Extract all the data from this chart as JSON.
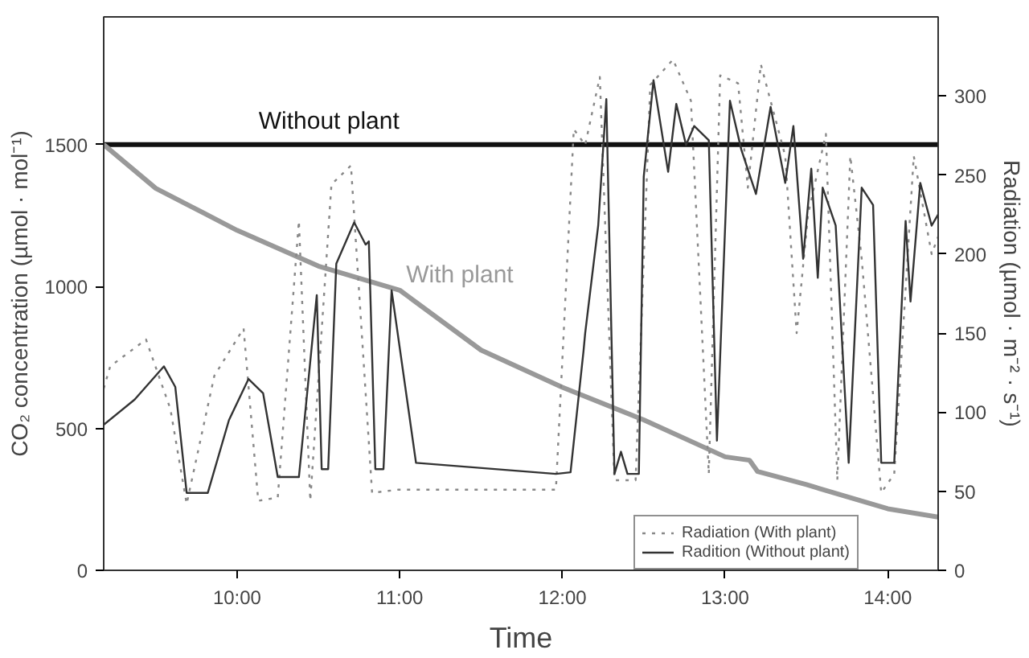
{
  "chart_data": {
    "type": "line",
    "xlabel": "Time",
    "ylabel": "CO₂ concentration (µmol · mol⁻¹)",
    "y2label": "Radiation (µmol · m⁻² · s⁻¹)",
    "xlim": [
      9.18,
      14.31
    ],
    "xticks": [
      {
        "value": 10,
        "label": "10:00"
      },
      {
        "value": 11,
        "label": "11:00"
      },
      {
        "value": 12,
        "label": "12:00"
      },
      {
        "value": 13,
        "label": "13:00"
      },
      {
        "value": 14,
        "label": "14:00"
      }
    ],
    "ylim": [
      0,
      1950
    ],
    "yticks": [
      0,
      500,
      1000,
      1500
    ],
    "y2lim": [
      0,
      350
    ],
    "y2ticks": [
      0,
      50,
      100,
      150,
      200,
      250,
      300
    ],
    "legend": "bottom",
    "series": [
      {
        "name": "Without plant",
        "color": "#111111",
        "line_style": "solid",
        "x": [
          9.18,
          14.31
        ],
        "values": [
          1500,
          1500
        ]
      },
      {
        "name": "With plant",
        "color": "#999999",
        "line_style": "solid",
        "x": [
          9.18,
          9.5,
          10,
          10.5,
          11,
          11.5,
          12,
          12.5,
          13,
          13.15,
          13.2,
          13.5,
          14,
          14.31
        ],
        "values": [
          1500,
          1346,
          1198,
          1072,
          987,
          776,
          645,
          530,
          400,
          388,
          348,
          302,
          217,
          188
        ]
      },
      {
        "name": "Radiation (With plant)",
        "color": "#888888",
        "line_style": "dotted",
        "axis": "y2",
        "x": [
          9.18,
          9.22,
          9.44,
          9.59,
          9.69,
          9.86,
          10.04,
          10.13,
          10.25,
          10.38,
          10.45,
          10.58,
          10.7,
          10.83,
          10.99,
          11.96,
          12.07,
          12.14,
          12.23,
          12.32,
          12.45,
          12.54,
          12.68,
          12.79,
          12.9,
          12.97,
          13.08,
          13.14,
          13.22,
          13.37,
          13.44,
          13.51,
          13.62,
          13.69,
          13.77,
          13.84,
          13.96,
          14.04,
          14.16,
          14.27,
          14.31
        ],
        "values": [
          115,
          129,
          146,
          102,
          42,
          123,
          153,
          44,
          46,
          221,
          44,
          244,
          256,
          49,
          51,
          51,
          279,
          269,
          312,
          57,
          57,
          307,
          323,
          297,
          61,
          313,
          308,
          242,
          320,
          262,
          150,
          225,
          276,
          57,
          262,
          197,
          49,
          61,
          262,
          200,
          211
        ]
      },
      {
        "name": "Radition (Without plant)",
        "color": "#333333",
        "line_style": "solid",
        "axis": "y2",
        "x": [
          9.18,
          9.37,
          9.55,
          9.62,
          9.69,
          9.82,
          9.95,
          10.07,
          10.16,
          10.25,
          10.38,
          10.49,
          10.52,
          10.56,
          10.61,
          10.72,
          10.79,
          10.81,
          10.85,
          10.9,
          10.95,
          11.1,
          11.96,
          12.05,
          12.13,
          12.14,
          12.22,
          12.27,
          12.32,
          12.36,
          12.4,
          12.47,
          12.5,
          12.56,
          12.65,
          12.7,
          12.76,
          12.81,
          12.9,
          12.95,
          13.03,
          13.1,
          13.19,
          13.28,
          13.37,
          13.42,
          13.48,
          13.53,
          13.57,
          13.6,
          13.68,
          13.76,
          13.84,
          13.91,
          13.96,
          14.04,
          14.11,
          14.14,
          14.2,
          14.27,
          14.31
        ],
        "values": [
          92,
          108,
          129,
          116,
          49,
          49,
          95,
          121,
          112,
          59,
          59,
          174,
          64,
          64,
          194,
          220,
          206,
          208,
          64,
          64,
          177,
          68,
          61,
          62,
          139,
          150,
          218,
          298,
          61,
          75,
          61,
          61,
          249,
          310,
          252,
          295,
          269,
          281,
          272,
          82,
          297,
          266,
          238,
          293,
          245,
          281,
          197,
          254,
          185,
          242,
          218,
          68,
          242,
          231,
          68,
          68,
          221,
          170,
          245,
          218,
          225
        ]
      }
    ]
  }
}
